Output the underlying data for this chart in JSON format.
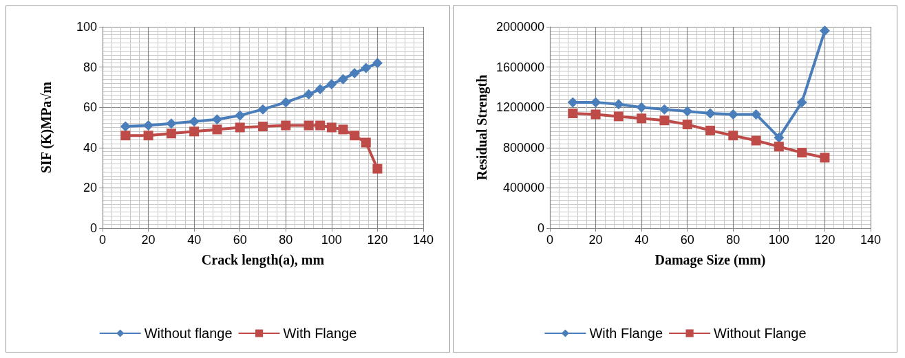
{
  "chart_data": [
    {
      "type": "line",
      "xlabel": "Crack length(a), mm",
      "ylabel": "SIF (K)MPa√m",
      "x": [
        10,
        20,
        30,
        40,
        50,
        60,
        70,
        80,
        90,
        95,
        100,
        105,
        110,
        115,
        120
      ],
      "xlim": [
        0,
        140
      ],
      "xticks": [
        0,
        20,
        40,
        60,
        80,
        100,
        120,
        140
      ],
      "ylim": [
        0,
        100
      ],
      "yticks": [
        0,
        20,
        40,
        60,
        80,
        100
      ],
      "grid": true,
      "legend": "bottom",
      "series": [
        {
          "name": "Without flange",
          "color": "#4a7ebb",
          "marker": "diamond",
          "values": [
            50.5,
            51,
            52,
            53,
            54,
            56,
            59,
            62.5,
            66.5,
            69,
            71.5,
            74,
            77,
            79.5,
            82
          ]
        },
        {
          "name": "With Flange",
          "color": "#be4b48",
          "marker": "square",
          "values": [
            46,
            46,
            47,
            48,
            49,
            50,
            50.5,
            51,
            51,
            51,
            50,
            49,
            46,
            42.5,
            29.5
          ]
        }
      ]
    },
    {
      "type": "line",
      "xlabel": "Damage Size (mm)",
      "ylabel": "Residual Strength",
      "x": [
        10,
        20,
        30,
        40,
        50,
        60,
        70,
        80,
        90,
        100,
        110,
        120
      ],
      "xlim": [
        0,
        140
      ],
      "xticks": [
        0,
        20,
        40,
        60,
        80,
        100,
        120,
        140
      ],
      "ylim": [
        0,
        2000000
      ],
      "yticks": [
        0,
        400000,
        800000,
        1200000,
        1600000,
        2000000
      ],
      "grid": true,
      "legend": "bottom",
      "series": [
        {
          "name": "With Flange",
          "color": "#4a7ebb",
          "marker": "diamond",
          "values": [
            1250000,
            1250000,
            1230000,
            1200000,
            1180000,
            1160000,
            1140000,
            1130000,
            1130000,
            900000,
            1250000,
            1960000
          ]
        },
        {
          "name": "Without Flange",
          "color": "#be4b48",
          "marker": "square",
          "values": [
            1140000,
            1130000,
            1110000,
            1090000,
            1070000,
            1030000,
            970000,
            920000,
            870000,
            810000,
            750000,
            700000
          ]
        }
      ]
    }
  ]
}
